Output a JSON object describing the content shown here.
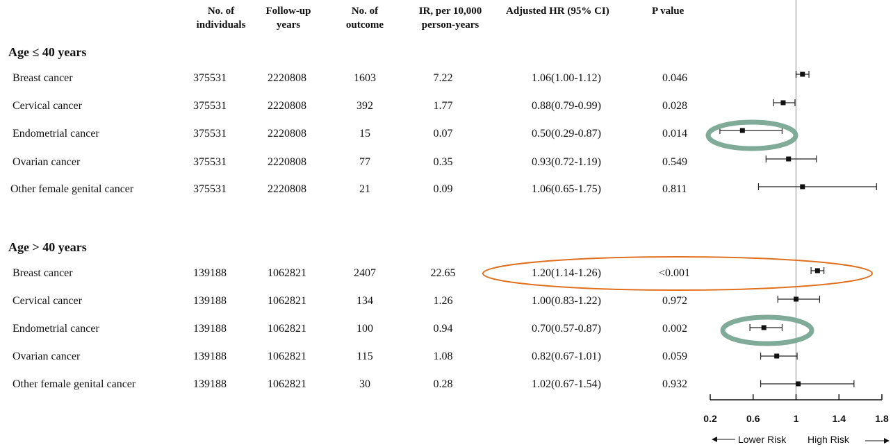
{
  "headers": {
    "individuals": [
      "No. of",
      "individuals"
    ],
    "followup": [
      "Follow-up",
      "years"
    ],
    "outcome": [
      "No. of",
      "outcome"
    ],
    "ir": [
      "IR, per 10,000",
      "person-years"
    ],
    "hr": [
      "Adjusted HR (95%  CI)"
    ],
    "p": [
      "P value"
    ]
  },
  "groups": [
    {
      "label": "Age ≤ 40 years",
      "rows": [
        {
          "name": "Breast cancer",
          "n": "375531",
          "followup": "2220808",
          "outcome": "1603",
          "ir": "7.22",
          "hr": "1.06(1.00-1.12)",
          "p": "0.046"
        },
        {
          "name": "Cervical cancer",
          "n": "375531",
          "followup": "2220808",
          "outcome": "392",
          "ir": "1.77",
          "hr": "0.88(0.79-0.99)",
          "p": "0.028"
        },
        {
          "name": "Endometrial cancer",
          "n": "375531",
          "followup": "2220808",
          "outcome": "15",
          "ir": "0.07",
          "hr": "0.50(0.29-0.87)",
          "p": "0.014"
        },
        {
          "name": "Ovarian cancer",
          "n": "375531",
          "followup": "2220808",
          "outcome": "77",
          "ir": "0.35",
          "hr": "0.93(0.72-1.19)",
          "p": "0.549"
        },
        {
          "name": "Other female genital  cancer",
          "n": "375531",
          "followup": "2220808",
          "outcome": "21",
          "ir": "0.09",
          "hr": "1.06(0.65-1.75)",
          "p": "0.811"
        }
      ]
    },
    {
      "label": "Age > 40 years",
      "rows": [
        {
          "name": "Breast cancer",
          "n": "139188",
          "followup": "1062821",
          "outcome": "2407",
          "ir": "22.65",
          "hr": "1.20(1.14-1.26)",
          "p": "<0.001"
        },
        {
          "name": "Cervical cancer",
          "n": "139188",
          "followup": "1062821",
          "outcome": "134",
          "ir": "1.26",
          "hr": "1.00(0.83-1.22)",
          "p": "0.972"
        },
        {
          "name": "Endometrial cancer",
          "n": "139188",
          "followup": "1062821",
          "outcome": "100",
          "ir": "0.94",
          "hr": "0.70(0.57-0.87)",
          "p": "0.002"
        },
        {
          "name": "Ovarian cancer",
          "n": "139188",
          "followup": "1062821",
          "outcome": "115",
          "ir": "1.08",
          "hr": "0.82(0.67-1.01)",
          "p": "0.059"
        },
        {
          "name": "Other female genital cancer",
          "n": "139188",
          "followup": "1062821",
          "outcome": "30",
          "ir": "0.28",
          "hr": "1.02(0.67-1.54)",
          "p": "0.932"
        }
      ]
    }
  ],
  "chart_data": {
    "type": "scatter",
    "subtype": "forest-plot",
    "x_ticks": [
      "0.2",
      "0.6",
      "1",
      "1.4",
      "1.8"
    ],
    "xlim": [
      0.2,
      1.8
    ],
    "reference_line": 1,
    "direction_labels": {
      "left": "Lower Risk",
      "right": "High Risk"
    },
    "points": [
      {
        "est": 1.06,
        "lo": 1.0,
        "hi": 1.12
      },
      {
        "est": 0.88,
        "lo": 0.79,
        "hi": 0.99
      },
      {
        "est": 0.5,
        "lo": 0.29,
        "hi": 0.87
      },
      {
        "est": 0.93,
        "lo": 0.72,
        "hi": 1.19
      },
      {
        "est": 1.06,
        "lo": 0.65,
        "hi": 1.75
      },
      {
        "est": 1.2,
        "lo": 1.14,
        "hi": 1.26
      },
      {
        "est": 1.0,
        "lo": 0.83,
        "hi": 1.22
      },
      {
        "est": 0.7,
        "lo": 0.57,
        "hi": 0.87
      },
      {
        "est": 0.82,
        "lo": 0.67,
        "hi": 1.01
      },
      {
        "est": 1.02,
        "lo": 0.67,
        "hi": 1.54
      }
    ],
    "annotation_colors": {
      "highlight_green": "#7fab98",
      "highlight_orange": "#e07020"
    }
  }
}
